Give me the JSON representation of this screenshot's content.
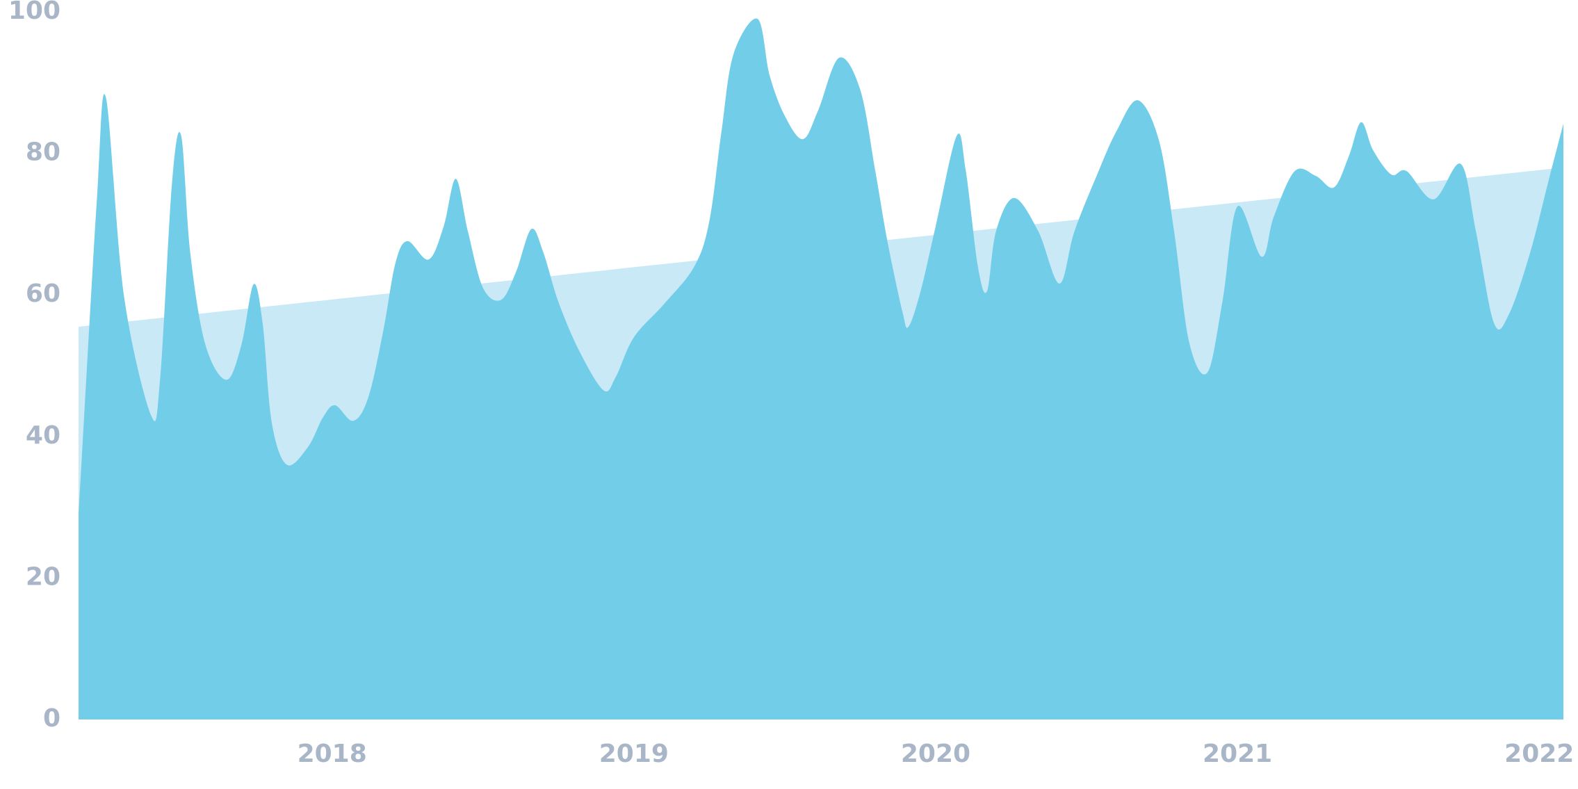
{
  "chart_data": {
    "type": "area",
    "x": [
      2017.16,
      2017.22,
      2017.25,
      2017.31,
      2017.4,
      2017.43,
      2017.47,
      2017.5,
      2017.53,
      2017.58,
      2017.65,
      2017.7,
      2017.74,
      2017.77,
      2017.8,
      2017.85,
      2017.92,
      2017.97,
      2018.01,
      2018.07,
      2018.12,
      2018.17,
      2018.21,
      2018.25,
      2018.32,
      2018.37,
      2018.41,
      2018.45,
      2018.5,
      2018.56,
      2018.61,
      2018.66,
      2018.7,
      2018.75,
      2018.82,
      2018.9,
      2018.94,
      2019.0,
      2019.1,
      2019.2,
      2019.25,
      2019.29,
      2019.33,
      2019.41,
      2019.45,
      2019.5,
      2019.56,
      2019.61,
      2019.68,
      2019.75,
      2019.8,
      2019.84,
      2019.89,
      2019.91,
      2019.95,
      2020.0,
      2020.07,
      2020.1,
      2020.14,
      2020.17,
      2020.2,
      2020.26,
      2020.34,
      2020.41,
      2020.46,
      2020.54,
      2020.6,
      2020.67,
      2020.74,
      2020.79,
      2020.84,
      2020.9,
      2020.95,
      2021.0,
      2021.08,
      2021.12,
      2021.19,
      2021.26,
      2021.32,
      2021.37,
      2021.41,
      2021.45,
      2021.51,
      2021.56,
      2021.65,
      2021.74,
      2021.79,
      2021.85,
      2021.9,
      2021.97,
      2022.03,
      2022.08
    ],
    "series": [
      {
        "color": "#c9e9f6",
        "x": [
          2017.16,
          2022.08
        ],
        "values": [
          55.5,
          78
        ]
      },
      {
        "color": "#72cde9",
        "values": [
          29,
          73,
          88,
          60,
          43,
          48,
          76,
          82.5,
          66,
          53,
          48,
          53,
          61.5,
          56,
          42,
          36,
          38.5,
          42.7,
          44.4,
          42.2,
          45.5,
          55,
          64.5,
          67.6,
          65,
          69.7,
          76.4,
          69,
          61,
          59.3,
          63.3,
          69.3,
          66,
          59,
          52,
          46.5,
          48.4,
          54,
          58.7,
          64,
          70.4,
          83,
          94,
          99,
          91,
          85.3,
          82,
          86,
          93.5,
          89,
          77.5,
          67.6,
          57.6,
          55.5,
          60.5,
          69.7,
          82.5,
          77.5,
          64,
          60.5,
          69,
          73.7,
          69,
          61.6,
          69,
          77.5,
          83.2,
          87.5,
          81.8,
          69,
          53.3,
          49,
          59,
          72.5,
          65.4,
          71,
          77.5,
          76.8,
          75.2,
          79.7,
          84.4,
          80.4,
          77,
          77.5,
          73.5,
          78.5,
          69,
          56,
          57.3,
          66,
          76,
          84.2
        ]
      }
    ],
    "xlim": [
      2017.16,
      2022.08
    ],
    "xticks": [
      2018,
      2019,
      2020,
      2021,
      2022
    ],
    "ylim": [
      0,
      100
    ],
    "yticks": [
      0,
      20,
      40,
      60,
      80,
      100
    ]
  }
}
